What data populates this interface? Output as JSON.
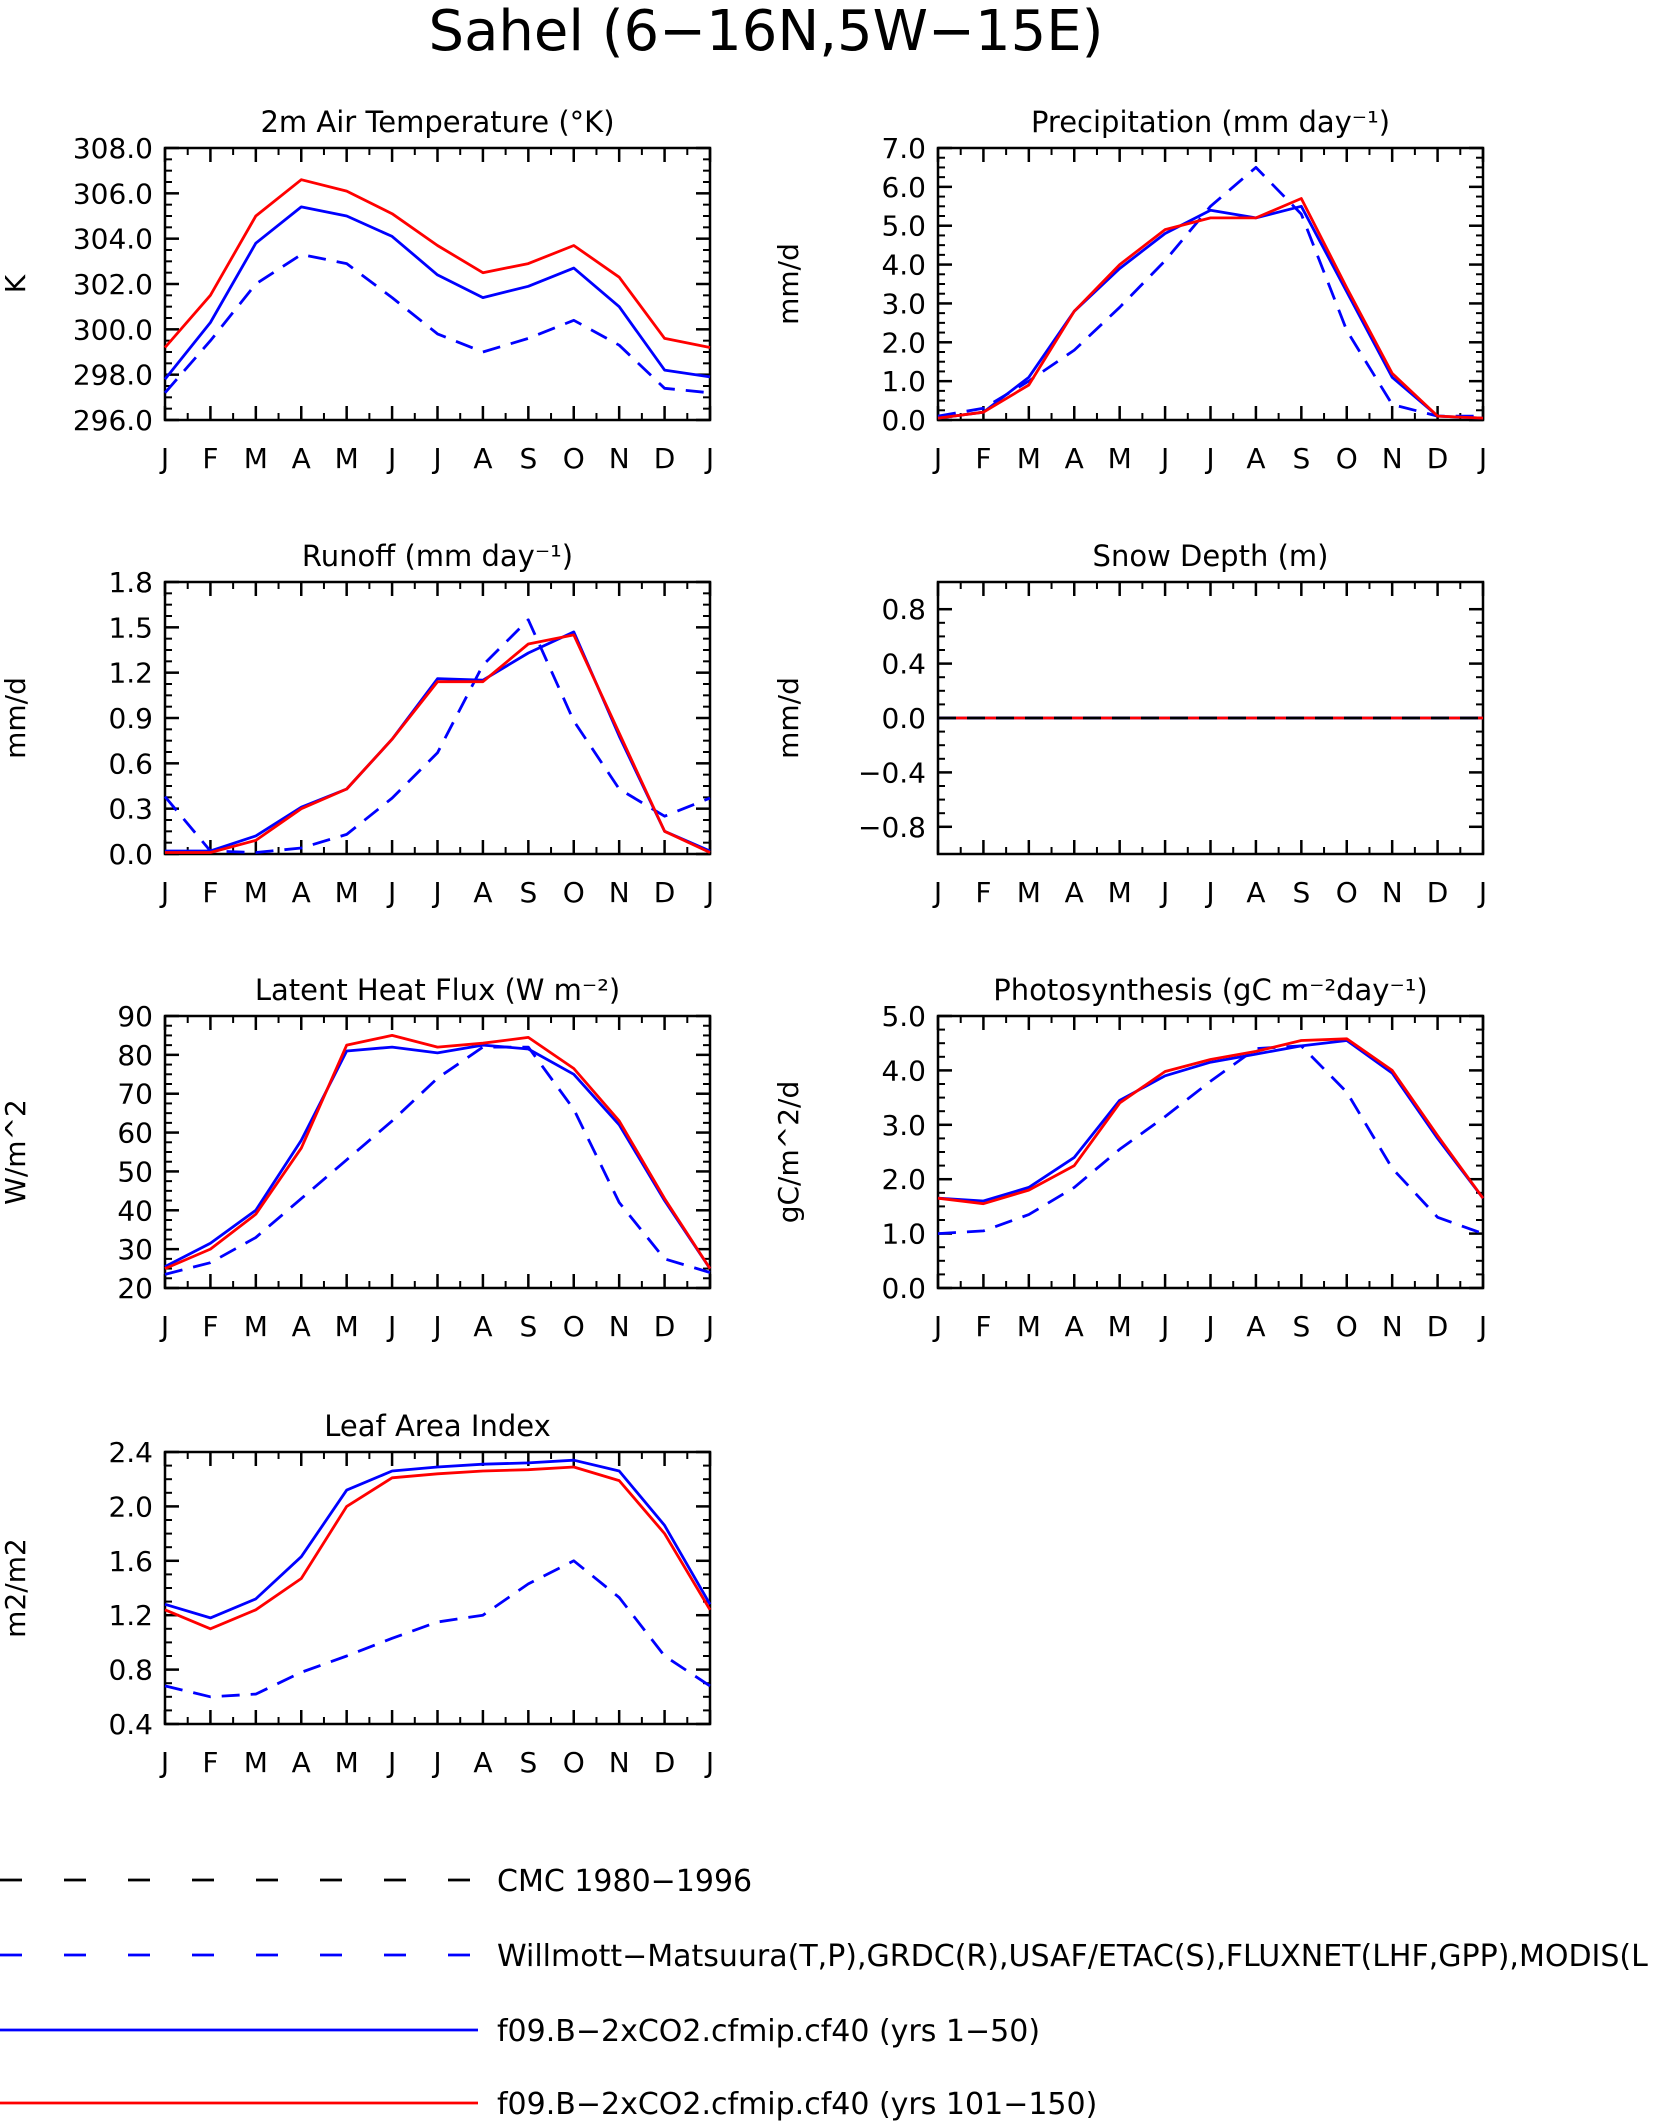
{
  "title": "Sahel (6−16N,5W−15E)",
  "months": [
    "J",
    "F",
    "M",
    "A",
    "M",
    "J",
    "J",
    "A",
    "S",
    "O",
    "N",
    "D",
    "J"
  ],
  "legend": [
    {
      "label": "CMC 1980−1996",
      "color": "#000000",
      "style": "dashed"
    },
    {
      "label": "Willmott−Matsuura(T,P),GRDC(R),USAF/ETAC(S),FLUXNET(LHF,GPP),MODIS(L",
      "color": "#0000ff",
      "style": "dashed"
    },
    {
      "label": "f09.B−2xCO2.cfmip.cf40 (yrs 1−50)",
      "color": "#0000ff",
      "style": "solid"
    },
    {
      "label": "f09.B−2xCO2.cfmip.cf40 (yrs 101−150)",
      "color": "#ff0000",
      "style": "solid"
    }
  ],
  "chart_data": [
    {
      "type": "line",
      "title": "2m Air Temperature (°K)",
      "ylabel": "K",
      "ylim": [
        296,
        308
      ],
      "yticks": [
        "296.0",
        "298.0",
        "300.0",
        "302.0",
        "304.0",
        "306.0",
        "308.0"
      ],
      "ytick_values": [
        296,
        298,
        300,
        302,
        304,
        306,
        308
      ],
      "series": [
        {
          "color": "#0000ff",
          "style": "dashed",
          "values": [
            297.2,
            299.5,
            302.0,
            303.3,
            302.9,
            301.4,
            299.8,
            299.0,
            299.6,
            300.4,
            299.3,
            297.4,
            297.2
          ]
        },
        {
          "color": "#0000ff",
          "style": "solid",
          "values": [
            297.8,
            300.3,
            303.8,
            305.4,
            305.0,
            304.1,
            302.4,
            301.4,
            301.9,
            302.7,
            301.0,
            298.2,
            297.9
          ]
        },
        {
          "color": "#ff0000",
          "style": "solid",
          "values": [
            299.2,
            301.5,
            305.0,
            306.6,
            306.1,
            305.1,
            303.7,
            302.5,
            302.9,
            303.7,
            302.3,
            299.6,
            299.2
          ]
        }
      ]
    },
    {
      "type": "line",
      "title": "Precipitation (mm day⁻¹)",
      "ylabel": "mm/d",
      "ylim": [
        0,
        7
      ],
      "yticks": [
        "0.0",
        "1.0",
        "2.0",
        "3.0",
        "4.0",
        "5.0",
        "6.0",
        "7.0"
      ],
      "ytick_values": [
        0,
        1,
        2,
        3,
        4,
        5,
        6,
        7
      ],
      "series": [
        {
          "color": "#0000ff",
          "style": "dashed",
          "values": [
            0.1,
            0.3,
            1.0,
            1.8,
            2.9,
            4.1,
            5.5,
            6.5,
            5.3,
            2.3,
            0.4,
            0.1,
            0.1
          ]
        },
        {
          "color": "#0000ff",
          "style": "solid",
          "values": [
            0.05,
            0.2,
            1.1,
            2.8,
            3.9,
            4.8,
            5.4,
            5.2,
            5.5,
            3.3,
            1.1,
            0.1,
            0.05
          ]
        },
        {
          "color": "#ff0000",
          "style": "solid",
          "values": [
            0.05,
            0.2,
            0.9,
            2.8,
            4.0,
            4.9,
            5.2,
            5.2,
            5.7,
            3.4,
            1.2,
            0.1,
            0.05
          ]
        }
      ]
    },
    {
      "type": "line",
      "title": "Runoff (mm day⁻¹)",
      "ylabel": "mm/d",
      "ylim": [
        0,
        1.8
      ],
      "yticks": [
        "0.0",
        "0.3",
        "0.6",
        "0.9",
        "1.2",
        "1.5",
        "1.8"
      ],
      "ytick_values": [
        0,
        0.3,
        0.6,
        0.9,
        1.2,
        1.5,
        1.8
      ],
      "series": [
        {
          "color": "#0000ff",
          "style": "dashed",
          "values": [
            0.38,
            0.02,
            0.01,
            0.04,
            0.13,
            0.37,
            0.67,
            1.25,
            1.55,
            0.88,
            0.43,
            0.25,
            0.37
          ]
        },
        {
          "color": "#0000ff",
          "style": "solid",
          "values": [
            0.02,
            0.02,
            0.12,
            0.31,
            0.43,
            0.76,
            1.16,
            1.15,
            1.33,
            1.47,
            0.78,
            0.15,
            0.02
          ]
        },
        {
          "color": "#ff0000",
          "style": "solid",
          "values": [
            0.01,
            0.01,
            0.09,
            0.3,
            0.43,
            0.76,
            1.14,
            1.14,
            1.39,
            1.45,
            0.8,
            0.15,
            0.01
          ]
        }
      ]
    },
    {
      "type": "line",
      "title": "Snow Depth (m)",
      "ylabel": "mm/d",
      "ylim": [
        -1,
        1
      ],
      "yticks": [
        "−0.8",
        "−0.4",
        "0.0",
        "0.4",
        "0.8"
      ],
      "ytick_values": [
        -0.8,
        -0.4,
        0,
        0.4,
        0.8
      ],
      "series": [
        {
          "color": "#0000ff",
          "style": "solid",
          "values": [
            0,
            0,
            0,
            0,
            0,
            0,
            0,
            0,
            0,
            0,
            0,
            0,
            0
          ]
        },
        {
          "color": "#ff0000",
          "style": "solid",
          "values": [
            0,
            0,
            0,
            0,
            0,
            0,
            0,
            0,
            0,
            0,
            0,
            0,
            0
          ]
        },
        {
          "color": "#0000ff",
          "style": "dashed",
          "values": [
            0,
            0,
            0,
            0,
            0,
            0,
            0,
            0,
            0,
            0,
            0,
            0,
            0
          ]
        },
        {
          "color": "#000000",
          "style": "dashed",
          "values": [
            0,
            0,
            0,
            0,
            0,
            0,
            0,
            0,
            0,
            0,
            0,
            0,
            0
          ]
        }
      ]
    },
    {
      "type": "line",
      "title": "Latent Heat Flux (W m⁻²)",
      "ylabel": "W/m^2",
      "ylim": [
        20,
        90
      ],
      "yticks": [
        "20",
        "30",
        "40",
        "50",
        "60",
        "70",
        "80",
        "90"
      ],
      "ytick_values": [
        20,
        30,
        40,
        50,
        60,
        70,
        80,
        90
      ],
      "series": [
        {
          "color": "#0000ff",
          "style": "dashed",
          "values": [
            23.5,
            26.5,
            33,
            43,
            53,
            63,
            74,
            82,
            82,
            66,
            42,
            27.5,
            24
          ]
        },
        {
          "color": "#0000ff",
          "style": "solid",
          "values": [
            25.5,
            31.5,
            40,
            58,
            81,
            82,
            80.5,
            82.5,
            81.5,
            75,
            62,
            42.5,
            25
          ]
        },
        {
          "color": "#ff0000",
          "style": "solid",
          "values": [
            25,
            30,
            39,
            56,
            82.5,
            85,
            82,
            83,
            84.5,
            76.5,
            63,
            43,
            25
          ]
        }
      ]
    },
    {
      "type": "line",
      "title": "Photosynthesis (gC m⁻²day⁻¹)",
      "ylabel": "gC/m^2/d",
      "ylim": [
        0,
        5
      ],
      "yticks": [
        "0.0",
        "1.0",
        "2.0",
        "3.0",
        "4.0",
        "5.0"
      ],
      "ytick_values": [
        0,
        1,
        2,
        3,
        4,
        5
      ],
      "series": [
        {
          "color": "#0000ff",
          "style": "dashed",
          "values": [
            1.0,
            1.05,
            1.35,
            1.85,
            2.55,
            3.15,
            3.8,
            4.4,
            4.45,
            3.6,
            2.2,
            1.3,
            1.0
          ]
        },
        {
          "color": "#0000ff",
          "style": "solid",
          "values": [
            1.65,
            1.6,
            1.85,
            2.4,
            3.45,
            3.9,
            4.15,
            4.3,
            4.45,
            4.55,
            3.95,
            2.75,
            1.65
          ]
        },
        {
          "color": "#ff0000",
          "style": "solid",
          "values": [
            1.65,
            1.55,
            1.8,
            2.25,
            3.4,
            3.98,
            4.2,
            4.35,
            4.55,
            4.58,
            4.0,
            2.8,
            1.65
          ]
        }
      ]
    },
    {
      "type": "line",
      "title": "Leaf Area Index",
      "ylabel": "m2/m2",
      "ylim": [
        0.4,
        2.4
      ],
      "yticks": [
        "0.4",
        "0.8",
        "1.2",
        "1.6",
        "2.0",
        "2.4"
      ],
      "ytick_values": [
        0.4,
        0.8,
        1.2,
        1.6,
        2.0,
        2.4
      ],
      "series": [
        {
          "color": "#0000ff",
          "style": "dashed",
          "values": [
            0.68,
            0.6,
            0.62,
            0.78,
            0.9,
            1.03,
            1.15,
            1.2,
            1.43,
            1.6,
            1.33,
            0.9,
            0.68
          ]
        },
        {
          "color": "#0000ff",
          "style": "solid",
          "values": [
            1.28,
            1.18,
            1.32,
            1.63,
            2.12,
            2.26,
            2.29,
            2.31,
            2.32,
            2.34,
            2.26,
            1.86,
            1.28
          ]
        },
        {
          "color": "#ff0000",
          "style": "solid",
          "values": [
            1.24,
            1.1,
            1.24,
            1.47,
            2.0,
            2.21,
            2.24,
            2.26,
            2.27,
            2.29,
            2.19,
            1.8,
            1.24
          ]
        }
      ]
    }
  ]
}
